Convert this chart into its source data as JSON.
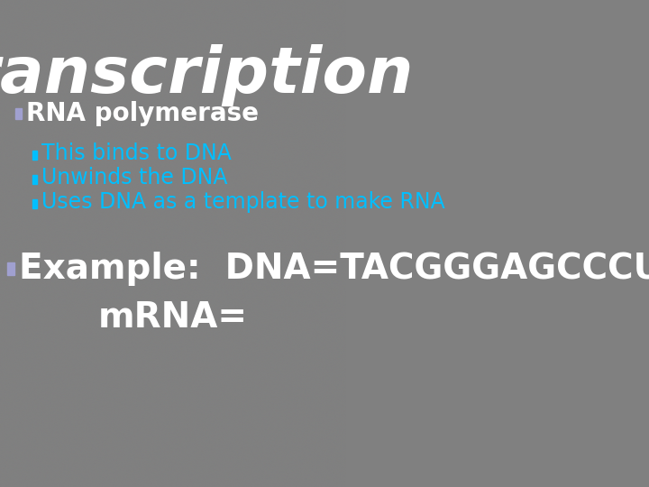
{
  "title": "Transcription",
  "title_color": "#FFFFFF",
  "title_fontsize": 52,
  "title_font": "Impact",
  "bg_color": "#808080",
  "bullet1_text": "RNA polymerase",
  "bullet1_color": "#FFFFFF",
  "bullet1_fontsize": 20,
  "bullet1_marker_color": "#A0A0D0",
  "sub_bullets": [
    {
      "text": "This ",
      "underline_words": [
        "binds",
        "DNA"
      ],
      "full": "This binds to DNA"
    },
    {
      "text": "Unwinds the DNA",
      "underline_words": [
        "Unwinds"
      ]
    },
    {
      "text": "Uses DNA as a template to make RNA",
      "underline_words": [
        "DNA",
        "template",
        "RNA"
      ]
    }
  ],
  "sub_bullet_color": "#00BFFF",
  "sub_bullet_fontsize": 17,
  "sub_marker_color": "#00BFFF",
  "example_label": "Example:  ",
  "example_dna": "DNA=TACGGGAGCCCUAACUG",
  "example_mrna": "mRNA=",
  "example_color": "#FFFFFF",
  "example_fontsize": 28
}
